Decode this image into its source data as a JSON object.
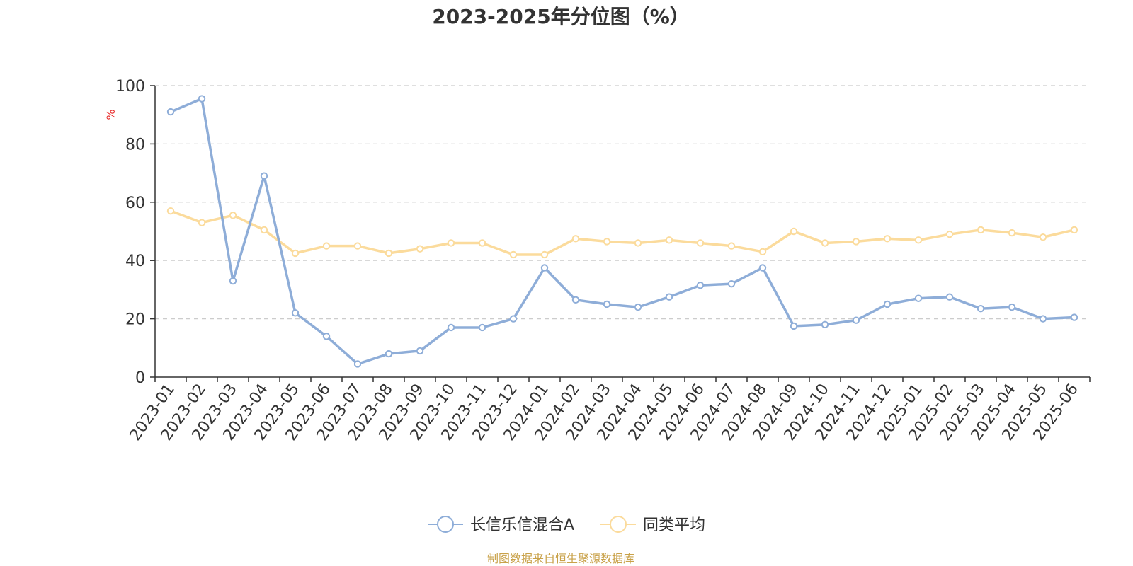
{
  "chart_data": {
    "type": "line",
    "title": "2023-2025年分位图（%）",
    "ylabel": "%",
    "ylim": [
      0,
      100
    ],
    "yticks": [
      0,
      20,
      40,
      60,
      80,
      100
    ],
    "grid": "horizontal-dashed",
    "legend_position": "bottom-center",
    "categories": [
      "2023-01",
      "2023-02",
      "2023-03",
      "2023-04",
      "2023-05",
      "2023-06",
      "2023-07",
      "2023-08",
      "2023-09",
      "2023-10",
      "2023-11",
      "2023-12",
      "2024-01",
      "2024-02",
      "2024-03",
      "2024-04",
      "2024-05",
      "2024-06",
      "2024-07",
      "2024-08",
      "2024-09",
      "2024-10",
      "2024-11",
      "2024-12",
      "2025-01",
      "2025-02",
      "2025-03",
      "2025-04",
      "2025-05",
      "2025-06"
    ],
    "series": [
      {
        "name": "长信乐信混合A",
        "color": "#8eadd8",
        "values": [
          91,
          95.5,
          33,
          69,
          22,
          14,
          4.5,
          8,
          9,
          17,
          17,
          20,
          37.5,
          26.5,
          25,
          24,
          27.5,
          31.5,
          32,
          37.5,
          17.5,
          18,
          19.5,
          25,
          27,
          27.5,
          23.5,
          24,
          20,
          20.5
        ]
      },
      {
        "name": "同类平均",
        "color": "#fbdb9c",
        "values": [
          57,
          53,
          55.5,
          50.5,
          42.5,
          45,
          45,
          42.5,
          44,
          46,
          46,
          42,
          42,
          47.5,
          46.5,
          46,
          47,
          46,
          45,
          43,
          50,
          46,
          46.5,
          47.5,
          47,
          49,
          50.5,
          49.5,
          48,
          50.5
        ]
      }
    ]
  },
  "colors": {
    "title": "#333333",
    "axis": "#333333",
    "grid": "#cccccc",
    "ylabel": "#e8302f",
    "source": "#c9a24a"
  },
  "source_note": "制图数据来自恒生聚源数据库"
}
